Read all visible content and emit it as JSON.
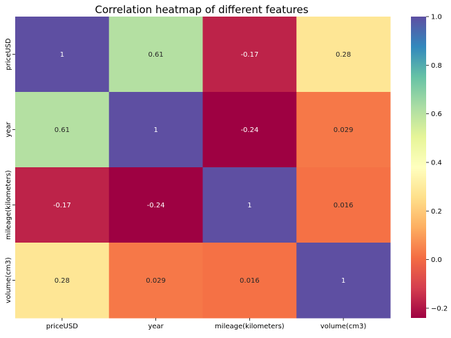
{
  "chart_data": {
    "type": "heatmap",
    "title": "Correlation heatmap of different features",
    "x_categories": [
      "priceUSD",
      "year",
      "mileage(kilometers)",
      "volume(cm3)"
    ],
    "y_categories": [
      "priceUSD",
      "year",
      "mileage(kilometers)",
      "volume(cm3)"
    ],
    "values": [
      [
        1,
        0.61,
        -0.17,
        0.28
      ],
      [
        0.61,
        1,
        -0.24,
        0.029
      ],
      [
        -0.17,
        -0.24,
        1,
        0.016
      ],
      [
        0.28,
        0.029,
        0.016,
        1
      ]
    ],
    "value_labels": [
      [
        "1",
        "0.61",
        "-0.17",
        "0.28"
      ],
      [
        "0.61",
        "1",
        "-0.24",
        "0.029"
      ],
      [
        "-0.17",
        "-0.24",
        "1",
        "0.016"
      ],
      [
        "0.28",
        "0.029",
        "0.016",
        "1"
      ]
    ],
    "colormap": "Spectral",
    "color_range": [
      -0.24,
      1
    ],
    "colorbar_ticks": [
      1.0,
      0.8,
      0.6,
      0.4,
      0.2,
      0.0,
      -0.2
    ],
    "colorbar_tick_labels": [
      "1.0",
      "0.8",
      "0.6",
      "0.4",
      "0.2",
      "0.0",
      "−0.2"
    ],
    "annotations_shown": true,
    "legend": "colorbar-right"
  }
}
